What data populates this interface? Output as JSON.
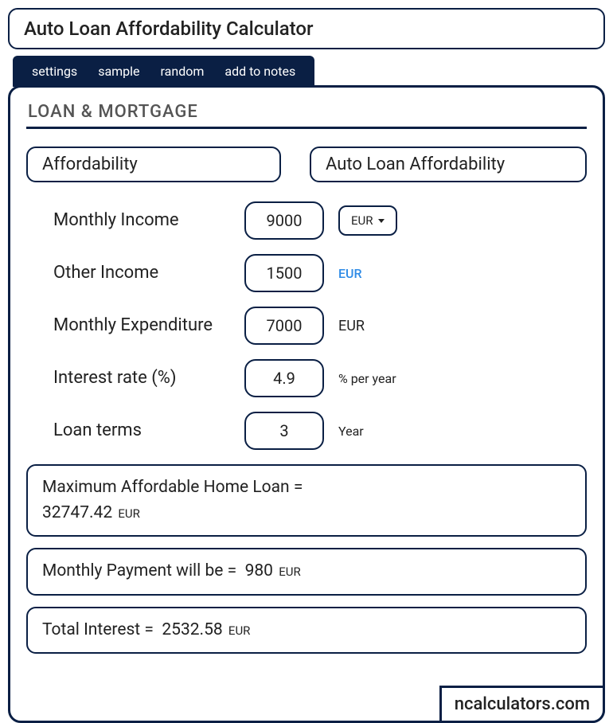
{
  "title": "Auto Loan Affordability Calculator",
  "tabs": {
    "settings": "settings",
    "sample": "sample",
    "random": "random",
    "add_to_notes": "add to notes"
  },
  "section_title": "LOAN & MORTGAGE",
  "chips": {
    "left": "Affordability",
    "right": "Auto Loan Affordability"
  },
  "fields": {
    "monthly_income": {
      "label": "Monthly Income",
      "value": "9000",
      "currency": "EUR"
    },
    "other_income": {
      "label": "Other Income",
      "value": "1500",
      "unit": "EUR"
    },
    "monthly_expenditure": {
      "label": "Monthly Expenditure",
      "value": "7000",
      "unit": "EUR"
    },
    "interest_rate": {
      "label": "Interest rate (%)",
      "value": "4.9",
      "unit": "% per year"
    },
    "loan_terms": {
      "label": "Loan terms",
      "value": "3",
      "unit": "Year"
    }
  },
  "results": {
    "max_loan": {
      "label": "Maximum Affordable Home Loan  =",
      "value": "32747.42",
      "currency": "EUR"
    },
    "monthly_payment": {
      "label": "Monthly Payment will be  =",
      "value": "980",
      "currency": "EUR"
    },
    "total_interest": {
      "label": "Total Interest  =",
      "value": "2532.58",
      "currency": "EUR"
    }
  },
  "footer": "ncalculators.com",
  "colors": {
    "border": "#0a1f44",
    "tab_bg": "#0a1f44",
    "link_blue": "#2e8be6",
    "text": "#222222",
    "muted": "#555555",
    "background": "#ffffff"
  }
}
